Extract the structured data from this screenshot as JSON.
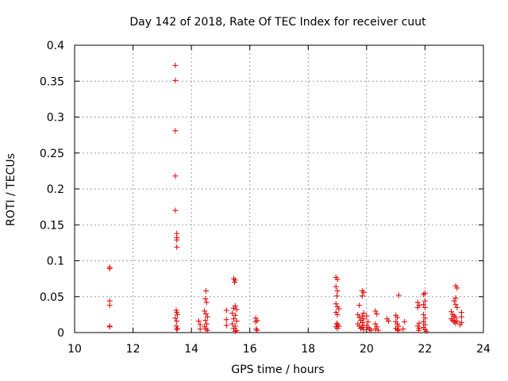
{
  "chart_data": {
    "type": "scatter",
    "title": "Day 142 of 2018, Rate Of TEC Index for receiver cuut",
    "xlabel": "GPS time / hours",
    "ylabel": "ROTI / TECUs",
    "xlim": [
      10,
      24
    ],
    "ylim": [
      0,
      0.4
    ],
    "x_ticks": [
      "10",
      "12",
      "14",
      "16",
      "18",
      "20",
      "22",
      "24"
    ],
    "y_ticks": [
      "0",
      "0.05",
      "0.1",
      "0.15",
      "0.2",
      "0.25",
      "0.3",
      "0.35",
      "0.4"
    ],
    "grid": true,
    "marker": "plus",
    "color": "#e00000",
    "series": [
      {
        "name": "ROTI",
        "points": [
          [
            11.2,
            0.091
          ],
          [
            11.2,
            0.089
          ],
          [
            11.2,
            0.044
          ],
          [
            11.2,
            0.038
          ],
          [
            11.2,
            0.009
          ],
          [
            11.2,
            0.008
          ],
          [
            13.45,
            0.372
          ],
          [
            13.45,
            0.351
          ],
          [
            13.45,
            0.281
          ],
          [
            13.45,
            0.218
          ],
          [
            13.45,
            0.17
          ],
          [
            13.5,
            0.138
          ],
          [
            13.5,
            0.132
          ],
          [
            13.5,
            0.129
          ],
          [
            13.5,
            0.119
          ],
          [
            13.48,
            0.031
          ],
          [
            13.5,
            0.028
          ],
          [
            13.52,
            0.025
          ],
          [
            13.45,
            0.02
          ],
          [
            13.5,
            0.016
          ],
          [
            13.48,
            0.009
          ],
          [
            13.52,
            0.006
          ],
          [
            13.5,
            0.004
          ],
          [
            14.25,
            0.016
          ],
          [
            14.3,
            0.011
          ],
          [
            14.3,
            0.005
          ],
          [
            14.5,
            0.058
          ],
          [
            14.48,
            0.047
          ],
          [
            14.52,
            0.042
          ],
          [
            14.45,
            0.03
          ],
          [
            14.5,
            0.026
          ],
          [
            14.55,
            0.022
          ],
          [
            14.48,
            0.017
          ],
          [
            14.52,
            0.012
          ],
          [
            14.45,
            0.008
          ],
          [
            14.5,
            0.005
          ],
          [
            14.55,
            0.003
          ],
          [
            15.2,
            0.031
          ],
          [
            15.2,
            0.018
          ],
          [
            15.2,
            0.01
          ],
          [
            15.45,
            0.075
          ],
          [
            15.5,
            0.073
          ],
          [
            15.48,
            0.07
          ],
          [
            15.5,
            0.037
          ],
          [
            15.45,
            0.034
          ],
          [
            15.55,
            0.032
          ],
          [
            15.4,
            0.027
          ],
          [
            15.5,
            0.024
          ],
          [
            15.45,
            0.019
          ],
          [
            15.55,
            0.016
          ],
          [
            15.4,
            0.012
          ],
          [
            15.5,
            0.009
          ],
          [
            15.45,
            0.006
          ],
          [
            15.55,
            0.003
          ],
          [
            15.5,
            0.002
          ],
          [
            16.2,
            0.02
          ],
          [
            16.25,
            0.017
          ],
          [
            16.2,
            0.015
          ],
          [
            16.22,
            0.005
          ],
          [
            16.25,
            0.003
          ],
          [
            18.95,
            0.077
          ],
          [
            19.0,
            0.074
          ],
          [
            18.95,
            0.064
          ],
          [
            19.0,
            0.058
          ],
          [
            18.98,
            0.051
          ],
          [
            18.95,
            0.04
          ],
          [
            19.0,
            0.036
          ],
          [
            19.05,
            0.033
          ],
          [
            18.95,
            0.028
          ],
          [
            19.0,
            0.025
          ],
          [
            18.98,
            0.013
          ],
          [
            19.0,
            0.011
          ],
          [
            19.05,
            0.009
          ],
          [
            18.95,
            0.008
          ],
          [
            19.0,
            0.006
          ],
          [
            19.75,
            0.038
          ],
          [
            19.7,
            0.025
          ],
          [
            19.75,
            0.021
          ],
          [
            19.8,
            0.017
          ],
          [
            19.7,
            0.012
          ],
          [
            19.75,
            0.009
          ],
          [
            19.8,
            0.006
          ],
          [
            19.85,
            0.058
          ],
          [
            19.9,
            0.056
          ],
          [
            19.85,
            0.051
          ],
          [
            19.9,
            0.027
          ],
          [
            19.85,
            0.023
          ],
          [
            19.9,
            0.019
          ],
          [
            19.85,
            0.014
          ],
          [
            19.9,
            0.01
          ],
          [
            19.85,
            0.007
          ],
          [
            19.9,
            0.004
          ],
          [
            20.0,
            0.023
          ],
          [
            20.05,
            0.015
          ],
          [
            20.0,
            0.01
          ],
          [
            20.05,
            0.007
          ],
          [
            20.1,
            0.005
          ],
          [
            20.15,
            0.003
          ],
          [
            20.3,
            0.03
          ],
          [
            20.35,
            0.026
          ],
          [
            20.3,
            0.012
          ],
          [
            20.35,
            0.008
          ],
          [
            20.3,
            0.005
          ],
          [
            20.4,
            0.003
          ],
          [
            20.7,
            0.019
          ],
          [
            20.75,
            0.016
          ],
          [
            21.0,
            0.024
          ],
          [
            21.05,
            0.021
          ],
          [
            21.1,
            0.052
          ],
          [
            21.0,
            0.015
          ],
          [
            21.05,
            0.012
          ],
          [
            21.1,
            0.009
          ],
          [
            21.0,
            0.006
          ],
          [
            21.05,
            0.004
          ],
          [
            21.1,
            0.003
          ],
          [
            21.3,
            0.015
          ],
          [
            21.25,
            0.005
          ],
          [
            21.75,
            0.042
          ],
          [
            21.8,
            0.038
          ],
          [
            21.75,
            0.035
          ],
          [
            21.8,
            0.013
          ],
          [
            21.75,
            0.009
          ],
          [
            21.8,
            0.006
          ],
          [
            21.78,
            0.003
          ],
          [
            22.0,
            0.055
          ],
          [
            21.95,
            0.053
          ],
          [
            22.0,
            0.044
          ],
          [
            21.95,
            0.039
          ],
          [
            22.0,
            0.035
          ],
          [
            21.95,
            0.025
          ],
          [
            22.0,
            0.02
          ],
          [
            21.95,
            0.015
          ],
          [
            22.0,
            0.011
          ],
          [
            21.95,
            0.007
          ],
          [
            22.0,
            0.004
          ],
          [
            22.05,
            0.002
          ],
          [
            23.05,
            0.065
          ],
          [
            23.1,
            0.062
          ],
          [
            23.05,
            0.048
          ],
          [
            23.0,
            0.044
          ],
          [
            23.05,
            0.039
          ],
          [
            23.1,
            0.035
          ],
          [
            22.9,
            0.029
          ],
          [
            22.95,
            0.025
          ],
          [
            23.0,
            0.023
          ],
          [
            23.05,
            0.021
          ],
          [
            22.9,
            0.019
          ],
          [
            22.95,
            0.017
          ],
          [
            23.0,
            0.015
          ],
          [
            23.05,
            0.013
          ],
          [
            23.1,
            0.016
          ],
          [
            23.25,
            0.028
          ],
          [
            23.25,
            0.022
          ],
          [
            23.25,
            0.014
          ],
          [
            23.2,
            0.011
          ]
        ]
      }
    ]
  }
}
